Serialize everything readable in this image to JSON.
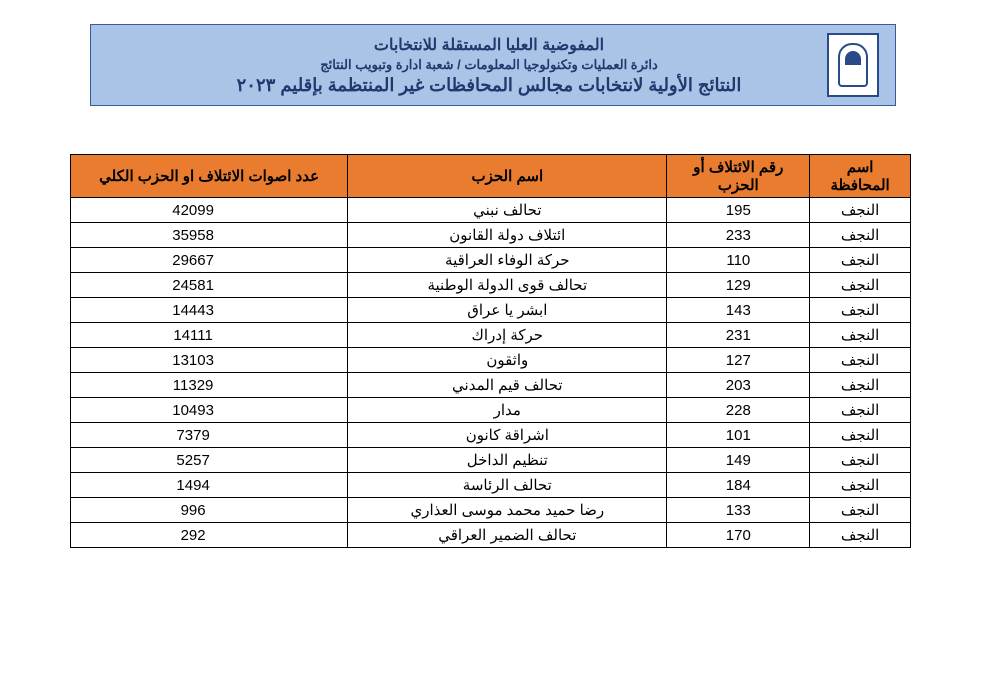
{
  "banner": {
    "line1": "المفوضية العليا المستقلة للانتخابات",
    "line2": "دائرة العمليات وتكنولوجيا المعلومات / شعبة ادارة وتبويب النتائج",
    "line3": "النتائج الأولية لانتخابات مجالس المحافظات غير المنتظمة بإقليم ٢٠٢٣"
  },
  "table": {
    "columns": [
      "اسم المحافظة",
      "رقم الائتلاف أو الحزب",
      "اسم الحزب",
      "عدد اصوات الائتلاف او الحزب الكلي"
    ],
    "header_bg": "#e97c2f",
    "border_color": "#000000",
    "rows": [
      {
        "gov": "النجف",
        "num": "195",
        "party": "تحالف نبني",
        "votes": "42099"
      },
      {
        "gov": "النجف",
        "num": "233",
        "party": "ائتلاف دولة القانون",
        "votes": "35958"
      },
      {
        "gov": "النجف",
        "num": "110",
        "party": "حركة الوفاء العراقية",
        "votes": "29667"
      },
      {
        "gov": "النجف",
        "num": "129",
        "party": "تحالف قوى الدولة الوطنية",
        "votes": "24581"
      },
      {
        "gov": "النجف",
        "num": "143",
        "party": "ابشر يا عراق",
        "votes": "14443"
      },
      {
        "gov": "النجف",
        "num": "231",
        "party": "حركة إدراك",
        "votes": "14111"
      },
      {
        "gov": "النجف",
        "num": "127",
        "party": "واثقون",
        "votes": "13103"
      },
      {
        "gov": "النجف",
        "num": "203",
        "party": "تحالف قيم المدني",
        "votes": "11329"
      },
      {
        "gov": "النجف",
        "num": "228",
        "party": "مدار",
        "votes": "10493"
      },
      {
        "gov": "النجف",
        "num": "101",
        "party": "اشراقة كانون",
        "votes": "7379"
      },
      {
        "gov": "النجف",
        "num": "149",
        "party": "تنظيم الداخل",
        "votes": "5257"
      },
      {
        "gov": "النجف",
        "num": "184",
        "party": "تحالف الرئاسة",
        "votes": "1494"
      },
      {
        "gov": "النجف",
        "num": "133",
        "party": "رضا حميد محمد موسى العذاري",
        "votes": "996"
      },
      {
        "gov": "النجف",
        "num": "170",
        "party": "تحالف الضمير العراقي",
        "votes": "292"
      }
    ]
  },
  "colors": {
    "banner_bg": "#a9c4e6",
    "banner_border": "#3a5a9a",
    "banner_text": "#1e3a6e",
    "page_bg": "#ffffff"
  }
}
